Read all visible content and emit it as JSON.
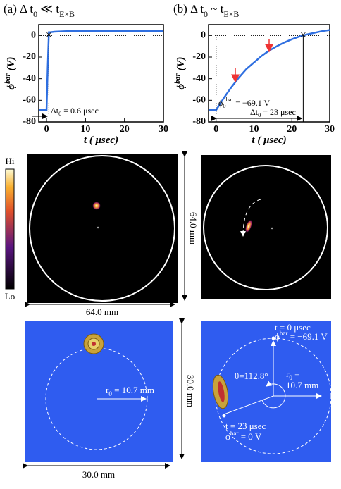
{
  "chart_data": [
    {
      "type": "line",
      "title": [
        {
          "t": "(a)  Δ t"
        },
        {
          "sub": "0"
        },
        {
          "t": " ≪ t"
        },
        {
          "sub": "E×B"
        }
      ],
      "xlabel": [
        {
          "t": "t ( μsec)"
        }
      ],
      "ylabel": [
        {
          "t": "ϕ"
        },
        {
          "sup": "bar"
        },
        {
          "t": " (V)"
        }
      ],
      "x": [
        -2,
        0,
        0.3,
        0.6,
        1,
        2,
        5,
        10,
        15,
        20,
        25,
        30
      ],
      "series": [
        {
          "color": "#2f6fe0",
          "values": [
            -69.1,
            -69.1,
            -30,
            3,
            3,
            3.5,
            4,
            4,
            4,
            4,
            4,
            4
          ]
        }
      ],
      "xlim": [
        -2,
        30
      ],
      "xticks": [
        0,
        10,
        20,
        30
      ],
      "ylim": [
        -80,
        10
      ],
      "yticks": [
        -80,
        -60,
        -40,
        -20,
        0
      ],
      "annotations": [
        [
          {
            "t": "Δt"
          },
          {
            "sub": "0"
          },
          {
            "t": " = 0.6 μsec"
          }
        ]
      ]
    },
    {
      "type": "line",
      "title": [
        {
          "t": "(b)  Δ t"
        },
        {
          "sub": "0"
        },
        {
          "t": " ~ t"
        },
        {
          "sub": "E×B"
        }
      ],
      "xlabel": [
        {
          "t": "t ( μsec)"
        }
      ],
      "ylabel": [
        {
          "t": "ϕ"
        },
        {
          "sup": "bar"
        },
        {
          "t": " (V)"
        }
      ],
      "x": [
        -2,
        0,
        2,
        4,
        6,
        8,
        10,
        12,
        14,
        16,
        18,
        20,
        22,
        24,
        26,
        28,
        30
      ],
      "series": [
        {
          "color": "#2f6fe0",
          "values": [
            -69.1,
            -69.1,
            -58,
            -48,
            -39,
            -31,
            -25,
            -19,
            -14,
            -10,
            -6.5,
            -3.5,
            -1,
            1,
            2.5,
            4,
            5
          ]
        }
      ],
      "xlim": [
        -2,
        30
      ],
      "xticks": [
        0,
        10,
        20,
        30
      ],
      "ylim": [
        -80,
        10
      ],
      "yticks": [
        -80,
        -60,
        -40,
        -20,
        0
      ],
      "annotations": [
        [
          {
            "t": "ϕ"
          },
          {
            "sub": "0"
          },
          {
            "sup": "bar"
          },
          {
            "t": " = −69.1 V"
          }
        ],
        [
          {
            "t": "Δt"
          },
          {
            "sub": "0"
          },
          {
            "t": " = 23 μsec"
          }
        ]
      ]
    }
  ],
  "images": {
    "colorbar_hi": "Hi",
    "colorbar_lo": "Lo",
    "middle_height": "64.0 mm",
    "middle_width": "64.0 mm",
    "bottom_height": "30.0 mm",
    "bottom_width": "30.0 mm",
    "left_radius": [
      {
        "t": "r"
      },
      {
        "sub": "0"
      },
      {
        "t": " = 10.7 mm"
      }
    ],
    "right_t0": [
      {
        "t": "t = 0 μsec"
      }
    ],
    "right_phi0": [
      {
        "t": "ϕ"
      },
      {
        "sup": "bar"
      },
      {
        "t": " = −69.1 V"
      }
    ],
    "right_theta": [
      {
        "t": "θ=112.8°"
      }
    ],
    "right_radius": [
      {
        "t": "r"
      },
      {
        "sub": "0"
      },
      {
        "t": " ="
      }
    ],
    "right_radius_value": [
      {
        "t": "10.7 mm"
      }
    ],
    "right_t23": [
      {
        "t": "t = 23 μsec"
      }
    ],
    "right_phi23": [
      {
        "t": "ϕ"
      },
      {
        "sup": "bar"
      },
      {
        "t": " = 0 V"
      }
    ]
  }
}
